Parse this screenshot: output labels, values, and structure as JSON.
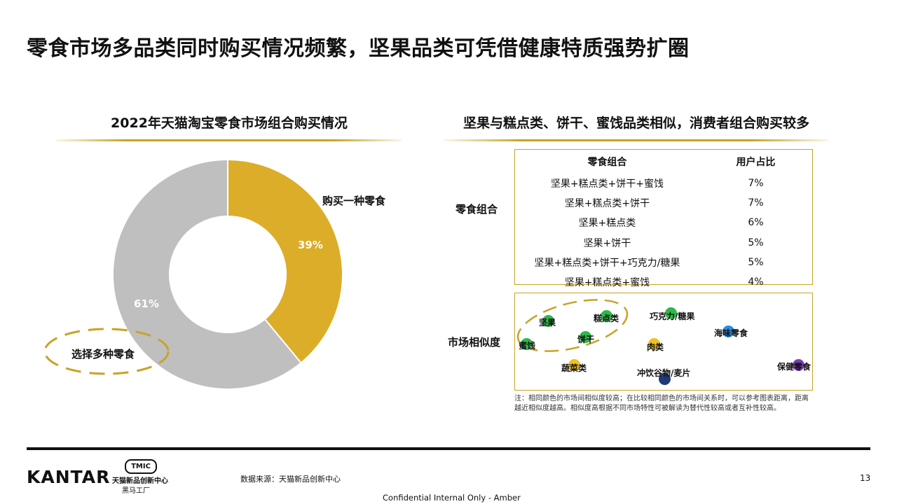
{
  "page": {
    "title": "零食市场多品类同时购买情况频繁，坚果品类可凭借健康特质强势扩圈",
    "page_number": "13",
    "source": "数据来源：天猫新品创新中心",
    "confidential": "Confidential Internal Only - Amber"
  },
  "left_panel": {
    "title": "2022年天猫淘宝零食市场组合购买情况",
    "slices": [
      {
        "label": "购买一种零食",
        "value_label": "39%",
        "value": 39,
        "color": "#dcad28"
      },
      {
        "label": "选择多种零食",
        "value_label": "61%",
        "value": 61,
        "color": "#bfbfbf"
      }
    ]
  },
  "right_panel": {
    "title": "坚果与糕点类、饼干、蜜饯品类相似，消费者组合购买较多",
    "combo_row_label": "零食组合",
    "table": {
      "headers": [
        "零食组合",
        "用户占比"
      ],
      "rows": [
        [
          "坚果+糕点类+饼干+蜜饯",
          "7%"
        ],
        [
          "坚果+糕点类+饼干",
          "7%"
        ],
        [
          "坚果+糕点类",
          "6%"
        ],
        [
          "坚果+饼干",
          "5%"
        ],
        [
          "坚果+糕点类+饼干+巧克力/糖果",
          "5%"
        ],
        [
          "坚果+糕点类+蜜饯",
          "4%"
        ]
      ]
    },
    "similarity_row_label": "市场相似度",
    "map_points": [
      {
        "label": "坚果",
        "color": "#2fb84a"
      },
      {
        "label": "糕点类",
        "color": "#2fb84a"
      },
      {
        "label": "巧克力/糖果",
        "color": "#2fb84a"
      },
      {
        "label": "饼干",
        "color": "#2fb84a"
      },
      {
        "label": "蜜饯",
        "color": "#2fb84a"
      },
      {
        "label": "海味零食",
        "color": "#2a8be0"
      },
      {
        "label": "肉类",
        "color": "#f0c020"
      },
      {
        "label": "蔬菜类",
        "color": "#f0c020"
      },
      {
        "label": "冲饮谷物/麦片",
        "color": "#1f3a7a"
      },
      {
        "label": "保健零食",
        "color": "#7b3fc0"
      }
    ],
    "note": "注：相同颜色的市场间相似度较高；在比较相同颜色的市场间关系时，可以参考图表距离，距离越近相似度越高。相似度高根据不同市场特性可被解读为替代性较高或者互补性较高。"
  },
  "footer": {
    "kantar": "KANTAR",
    "tmic_badge": "TMIC",
    "tmic_line1": "天猫新品创新中心",
    "tmic_line2": "黑马工厂"
  }
}
